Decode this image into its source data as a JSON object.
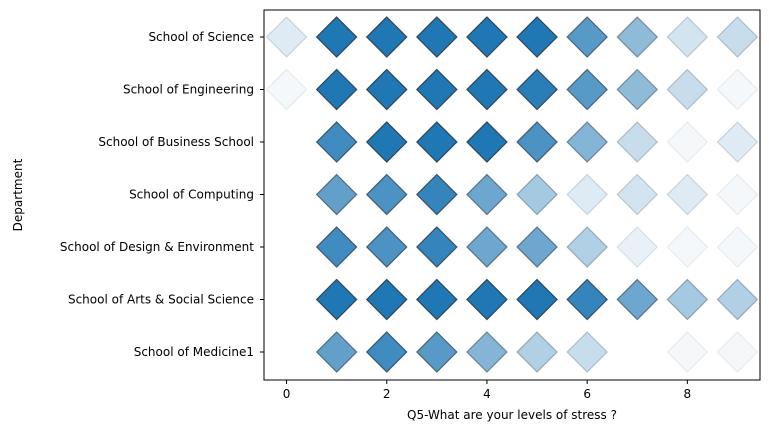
{
  "chart_data": {
    "type": "heatmap",
    "marker": "diamond",
    "color": "#1f77b4",
    "edge_color": "#2b3e50",
    "xlabel": "Q5-What are your levels of stress ?",
    "ylabel": "Department",
    "xlim": [
      -0.45,
      9.45
    ],
    "x_ticks": [
      0,
      2,
      4,
      6,
      8
    ],
    "x_tick_labels": [
      "0",
      "2",
      "4",
      "6",
      "8"
    ],
    "x": [
      0,
      1,
      2,
      3,
      4,
      5,
      6,
      7,
      8,
      9
    ],
    "categories": [
      "School of Science",
      "School of Engineering",
      "School of Business School",
      "School of Computing",
      "School of Design & Environment",
      "School of Arts & Social Science",
      "School of Medicine1"
    ],
    "intensity": [
      [
        0.15,
        1.0,
        1.0,
        1.0,
        1.0,
        1.0,
        0.75,
        0.5,
        0.2,
        0.25
      ],
      [
        0.05,
        1.0,
        1.0,
        1.0,
        1.0,
        0.95,
        0.75,
        0.5,
        0.25,
        0.05
      ],
      [
        null,
        0.85,
        1.0,
        1.0,
        1.0,
        0.8,
        0.55,
        0.25,
        0.05,
        0.15
      ],
      [
        null,
        0.7,
        0.8,
        0.9,
        0.65,
        0.4,
        0.15,
        0.2,
        0.15,
        0.05
      ],
      [
        null,
        0.85,
        0.8,
        0.9,
        0.65,
        0.65,
        0.35,
        0.1,
        0.05,
        0.05
      ],
      [
        null,
        1.0,
        1.0,
        1.0,
        1.0,
        1.0,
        0.9,
        0.65,
        0.4,
        0.35
      ],
      [
        null,
        0.7,
        0.85,
        0.75,
        0.55,
        0.35,
        0.25,
        null,
        0.05,
        0.05
      ]
    ]
  }
}
